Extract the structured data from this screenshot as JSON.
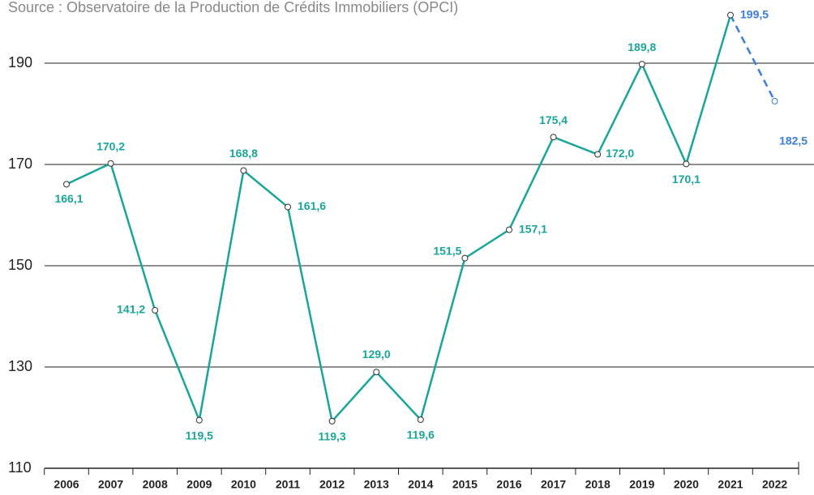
{
  "chart_data": {
    "type": "line",
    "source": "Source : Observatoire de la Production de Crédits Immobiliers (OPCI)",
    "categories": [
      "2006",
      "2007",
      "2008",
      "2009",
      "2010",
      "2011",
      "2012",
      "2013",
      "2014",
      "2015",
      "2016",
      "2017",
      "2018",
      "2019",
      "2020",
      "2021",
      "2022"
    ],
    "series": [
      {
        "color": "#1aa59a",
        "projection_color": "#3a7fd6",
        "projection_start": 15,
        "values": [
          166.1,
          170.2,
          141.2,
          119.5,
          168.8,
          161.6,
          119.3,
          129.0,
          119.6,
          151.5,
          157.1,
          175.4,
          172.0,
          189.8,
          170.1,
          199.5,
          182.5
        ],
        "value_labels": [
          "166,1",
          "170,2",
          "141,2",
          "119,5",
          "168,8",
          "161,6",
          "119,3",
          "129,0",
          "119,6",
          "151,5",
          "157,1",
          "175,4",
          "172,0",
          "189,8",
          "170,1",
          "199,5",
          "182,5"
        ]
      }
    ],
    "ylim": [
      110,
      200
    ],
    "yticks": [
      110,
      130,
      150,
      170,
      190
    ],
    "grid": true
  }
}
